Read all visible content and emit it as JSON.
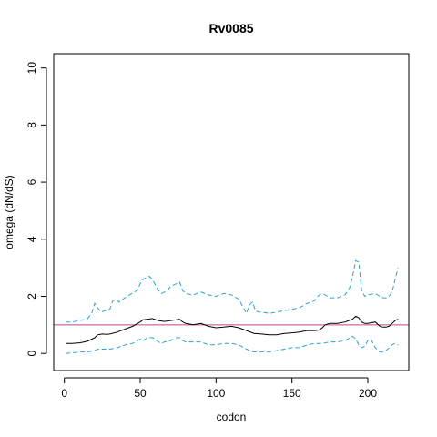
{
  "chart_data": {
    "type": "line",
    "title": "Rv0085",
    "xlabel": "codon",
    "ylabel": "omega (dN/dS)",
    "xlim": [
      -7,
      227
    ],
    "ylim": [
      -0.6,
      10.5
    ],
    "xticks": [
      0,
      50,
      100,
      150,
      200
    ],
    "yticks": [
      0,
      2,
      4,
      6,
      8,
      10
    ],
    "grid": false,
    "reference_line": {
      "y": 1,
      "color": "#c0408c"
    },
    "series": [
      {
        "style": "dashed",
        "color": "#29a3d8",
        "x": [
          1,
          5,
          10,
          15,
          18,
          20,
          22,
          24,
          27,
          30,
          32,
          34,
          36,
          40,
          43,
          46,
          48,
          50,
          52,
          54,
          56,
          58,
          60,
          62,
          64,
          66,
          68,
          70,
          72,
          74,
          76,
          78,
          80,
          85,
          90,
          95,
          100,
          105,
          110,
          115,
          120,
          122,
          124,
          126,
          128,
          130,
          135,
          140,
          145,
          150,
          155,
          160,
          165,
          168,
          170,
          172,
          175,
          180,
          185,
          188,
          190,
          192,
          194,
          196,
          198,
          200,
          205,
          208,
          210,
          212,
          214,
          216,
          218,
          220
        ],
        "values": [
          1.1,
          1.1,
          1.15,
          1.2,
          1.4,
          1.75,
          1.6,
          1.45,
          1.5,
          1.55,
          1.85,
          1.9,
          1.8,
          1.95,
          2.05,
          2.15,
          2.2,
          2.45,
          2.6,
          2.65,
          2.7,
          2.6,
          2.4,
          2.2,
          2.1,
          2.15,
          2.2,
          2.35,
          2.4,
          2.45,
          2.5,
          2.2,
          2.1,
          2.05,
          2.15,
          2.05,
          2.0,
          2.1,
          2.05,
          1.9,
          1.4,
          1.7,
          1.8,
          1.5,
          1.45,
          1.45,
          1.4,
          1.45,
          1.5,
          1.55,
          1.6,
          1.75,
          1.85,
          2.05,
          2.1,
          2.05,
          1.95,
          1.95,
          2.05,
          2.3,
          2.7,
          3.25,
          3.2,
          2.2,
          2.0,
          2.05,
          2.1,
          2.0,
          1.95,
          1.95,
          2.0,
          2.15,
          2.6,
          3.0
        ]
      },
      {
        "style": "solid",
        "color": "#000000",
        "x": [
          1,
          5,
          10,
          15,
          20,
          22,
          25,
          28,
          30,
          35,
          40,
          45,
          50,
          52,
          55,
          58,
          62,
          66,
          70,
          74,
          76,
          78,
          80,
          85,
          90,
          95,
          100,
          105,
          110,
          115,
          120,
          125,
          130,
          135,
          140,
          145,
          150,
          155,
          160,
          165,
          168,
          170,
          172,
          175,
          180,
          185,
          190,
          192,
          194,
          196,
          198,
          200,
          205,
          208,
          210,
          212,
          214,
          216,
          218,
          220
        ],
        "values": [
          0.35,
          0.35,
          0.37,
          0.42,
          0.55,
          0.65,
          0.68,
          0.67,
          0.68,
          0.75,
          0.85,
          0.95,
          1.1,
          1.18,
          1.2,
          1.22,
          1.15,
          1.12,
          1.15,
          1.18,
          1.2,
          1.1,
          1.05,
          1.0,
          1.05,
          0.95,
          0.9,
          0.92,
          0.95,
          0.9,
          0.8,
          0.7,
          0.68,
          0.65,
          0.65,
          0.7,
          0.72,
          0.75,
          0.8,
          0.8,
          0.82,
          0.9,
          1.0,
          1.05,
          1.05,
          1.1,
          1.2,
          1.3,
          1.25,
          1.1,
          1.05,
          1.05,
          1.1,
          0.95,
          0.92,
          0.92,
          0.95,
          1.05,
          1.15,
          1.2
        ]
      },
      {
        "style": "dashed",
        "color": "#29a3d8",
        "x": [
          1,
          5,
          10,
          15,
          20,
          22,
          25,
          30,
          35,
          40,
          45,
          48,
          50,
          52,
          55,
          58,
          60,
          62,
          64,
          66,
          70,
          74,
          76,
          78,
          80,
          85,
          90,
          95,
          100,
          105,
          110,
          115,
          120,
          125,
          130,
          135,
          140,
          145,
          150,
          155,
          160,
          165,
          170,
          175,
          180,
          185,
          190,
          192,
          194,
          196,
          198,
          200,
          202,
          205,
          208,
          210,
          212,
          214,
          216,
          218,
          220
        ],
        "values": [
          0.0,
          0.02,
          0.05,
          0.05,
          0.1,
          0.15,
          0.15,
          0.15,
          0.2,
          0.3,
          0.35,
          0.45,
          0.5,
          0.45,
          0.55,
          0.55,
          0.5,
          0.4,
          0.35,
          0.4,
          0.45,
          0.55,
          0.55,
          0.45,
          0.4,
          0.4,
          0.4,
          0.3,
          0.3,
          0.35,
          0.35,
          0.3,
          0.15,
          0.05,
          0.05,
          0.05,
          0.1,
          0.15,
          0.2,
          0.2,
          0.3,
          0.35,
          0.35,
          0.4,
          0.4,
          0.45,
          0.6,
          0.5,
          0.3,
          0.2,
          0.25,
          0.45,
          0.5,
          0.2,
          0.05,
          0.05,
          0.1,
          0.2,
          0.3,
          0.35,
          0.3
        ]
      }
    ]
  }
}
